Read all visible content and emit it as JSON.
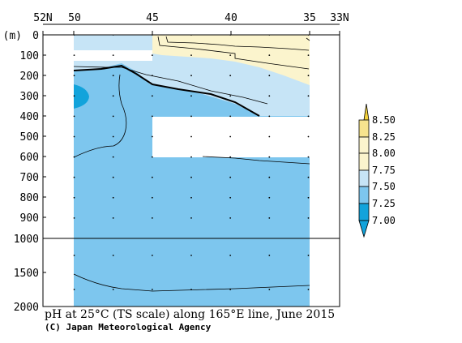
{
  "chart_data": {
    "type": "heatmap",
    "title": "pH at 25°C (TS scale) along 165°E line, June 2015",
    "credit": "(C) Japan Meteorological Agency",
    "y_unit": "(m)",
    "x_ticks": [
      "52N",
      "50",
      "45",
      "40",
      "35",
      "33N"
    ],
    "x_lim": [
      52,
      33
    ],
    "y_ticks_upper": [
      "0",
      "100",
      "200",
      "300",
      "400",
      "500",
      "600",
      "700",
      "800",
      "900"
    ],
    "y_ticks_lower": [
      "1000",
      "1500",
      "2000"
    ],
    "y_lim": [
      0,
      2000
    ],
    "y_break": 1000,
    "stations_lat": [
      50,
      47.5,
      45,
      42.5,
      40,
      37.5,
      35
    ],
    "legend_levels": [
      "8.50",
      "8.25",
      "8.00",
      "7.75",
      "7.50",
      "7.25",
      "7.00"
    ],
    "legend_colors": [
      "#f2d03b",
      "#f7e48e",
      "#fbf4cd",
      "#c6e4f6",
      "#7dc6ee",
      "#12a3db"
    ],
    "fill_colors": {
      "above_775": "#fbf4cd",
      "b750_775": "#c6e4f6",
      "b725_750": "#7dc6ee",
      "b700_725": "#12a3db",
      "above_800": "#f7e48e"
    },
    "bands": [
      {
        "range": "7.75-8.00",
        "lat_from": 45,
        "lat_to": 35,
        "depth_top": 0,
        "depth_bottom_north": 100,
        "depth_bottom_south": 250
      },
      {
        "range": "7.50-7.75",
        "lat_from": 50,
        "lat_to": 35,
        "depth_top": 0,
        "depth_bottom_north": 170,
        "depth_bottom_south": 400
      },
      {
        "range": "7.25-7.50",
        "lat_from": 50,
        "lat_to": 35,
        "depth_top": 170,
        "depth_bottom": 2000
      },
      {
        "range": "7.00-7.25",
        "lat_from": 50,
        "lat_to": 49.3,
        "depth_top": 240,
        "depth_bottom": 360
      }
    ],
    "missing_regions": [
      {
        "lat_from": 50,
        "lat_to": 45,
        "depth_from": 80,
        "depth_to": 130
      },
      {
        "lat_from": 45,
        "lat_to": 35,
        "depth_from": 400,
        "depth_to": 600
      }
    ]
  }
}
